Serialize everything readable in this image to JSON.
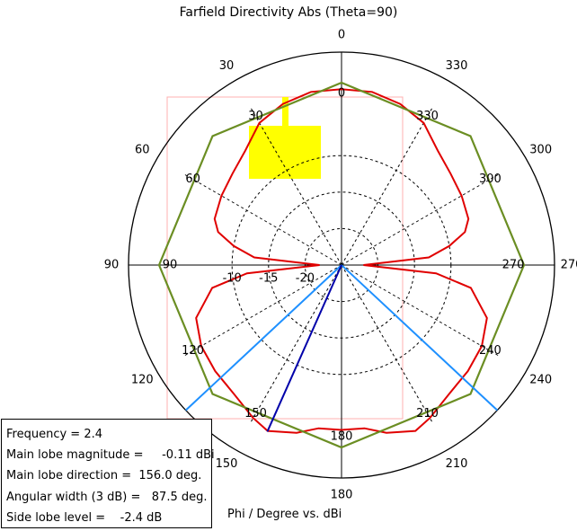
{
  "chart_data": {
    "type": "polar",
    "title": "Farfield Directivity Abs (Theta=90)",
    "axis_caption": "Phi / Degree vs. dBi",
    "unit": "dBi",
    "angle_direction": "counterclockwise",
    "zero_angle_position": "top",
    "r_min": -25,
    "r_max": 0,
    "radial_ticks": [
      -10,
      -15,
      -20
    ],
    "outer_angle_labels": [
      0,
      30,
      60,
      90,
      120,
      150,
      180,
      210,
      240,
      270,
      300,
      330
    ],
    "inner_angle_labels": [
      0,
      30,
      60,
      90,
      120,
      150,
      180,
      210,
      240,
      270,
      300,
      330
    ],
    "grid": "dashed",
    "series": [
      {
        "color": "#e00000",
        "style": "solid",
        "points": [
          [
            0,
            -0.9
          ],
          [
            10,
            -0.9
          ],
          [
            20,
            -1.5
          ],
          [
            30,
            -2.5
          ],
          [
            40,
            -4.5
          ],
          [
            50,
            -5.5
          ],
          [
            60,
            -6.0
          ],
          [
            70,
            -6.5
          ],
          [
            75,
            -7.5
          ],
          [
            80,
            -10.0
          ],
          [
            85,
            -13.0
          ],
          [
            90,
            -22.0
          ],
          [
            95,
            -12.0
          ],
          [
            100,
            -7.0
          ],
          [
            110,
            -3.8
          ],
          [
            120,
            -2.8
          ],
          [
            130,
            -2.4
          ],
          [
            140,
            -2.0
          ],
          [
            150,
            -0.8
          ],
          [
            156,
            -0.11
          ],
          [
            165,
            -1.2
          ],
          [
            172,
            -2.4
          ],
          [
            180,
            -2.4
          ],
          [
            188,
            -2.4
          ],
          [
            195,
            -1.2
          ],
          [
            204,
            -0.11
          ],
          [
            210,
            -0.8
          ],
          [
            220,
            -2.0
          ],
          [
            230,
            -2.4
          ],
          [
            240,
            -2.8
          ],
          [
            250,
            -3.8
          ],
          [
            260,
            -7.0
          ],
          [
            265,
            -12.0
          ],
          [
            270,
            -22.0
          ],
          [
            275,
            -13.0
          ],
          [
            280,
            -10.0
          ],
          [
            285,
            -7.5
          ],
          [
            290,
            -6.5
          ],
          [
            300,
            -6.0
          ],
          [
            310,
            -5.5
          ],
          [
            320,
            -4.5
          ],
          [
            330,
            -2.5
          ],
          [
            340,
            -1.5
          ],
          [
            350,
            -0.9
          ],
          [
            360,
            -0.9
          ]
        ]
      },
      {
        "color": "#6b8e23",
        "style": "solid",
        "points": [
          [
            0,
            0
          ],
          [
            45,
            0
          ],
          [
            90,
            0
          ],
          [
            135,
            0
          ],
          [
            180,
            0
          ],
          [
            225,
            0
          ],
          [
            270,
            0
          ],
          [
            315,
            0
          ],
          [
            360,
            0
          ]
        ]
      }
    ],
    "markers": {
      "main_lobe_direction": 156,
      "main_lobe_color": "#0000aa",
      "beamwidth_lines": [
        133,
        227
      ],
      "beamwidth_color": "#1e90ff",
      "highlight_color": "#ffff00",
      "guide_color": "#ffb0b0"
    },
    "info_box": [
      "Frequency = 2.4",
      "Main lobe magnitude =     -0.11 dBi",
      "Main lobe direction =  156.0 deg.",
      "Angular width (3 dB) =   87.5 deg.",
      "Side lobe level =    -2.4 dB"
    ]
  }
}
